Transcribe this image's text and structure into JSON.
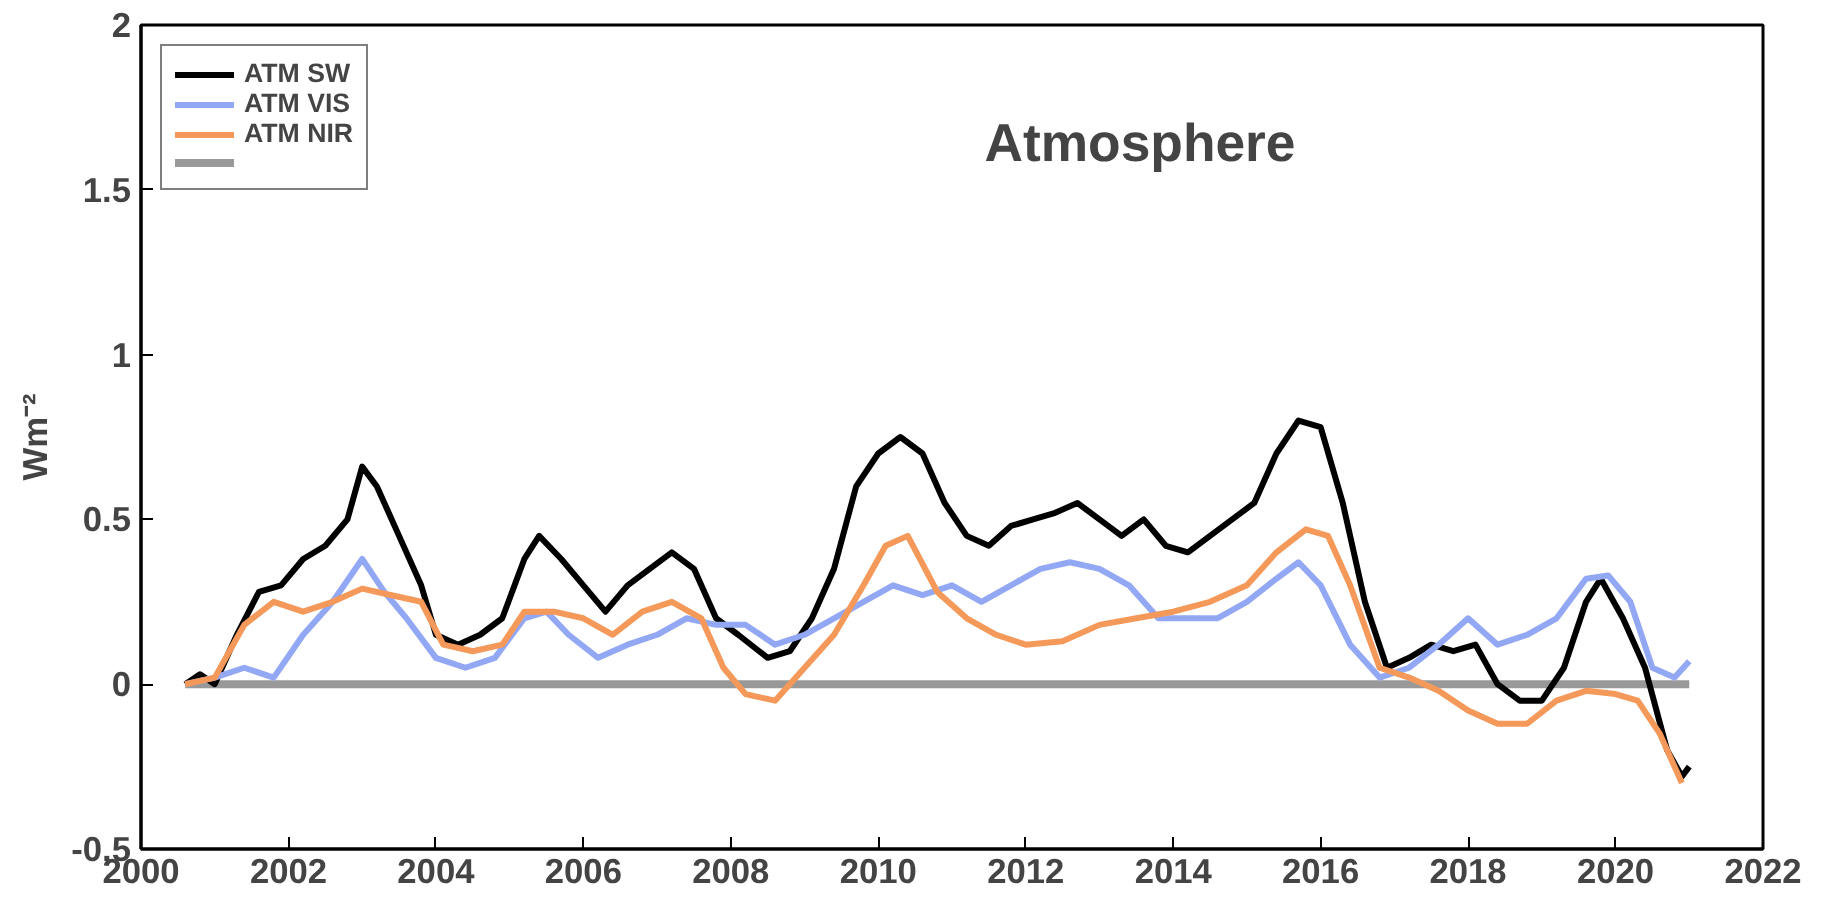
{
  "chart_data": {
    "type": "line",
    "title": "Atmosphere",
    "ylabel": "Wm⁻²",
    "xlim": [
      2000,
      2022
    ],
    "ylim": [
      -0.5,
      2
    ],
    "xticks": [
      2000,
      2002,
      2004,
      2006,
      2008,
      2010,
      2012,
      2014,
      2016,
      2018,
      2020,
      2022
    ],
    "yticks": [
      -0.5,
      0,
      0.5,
      1,
      1.5,
      2
    ],
    "grid": false,
    "legend": "top left",
    "line_style": "solid",
    "marker": "none",
    "series": [
      {
        "name": "ATM SW",
        "color": "#000000",
        "x": [
          2000.6,
          2000.8,
          2001.0,
          2001.3,
          2001.6,
          2001.9,
          2002.2,
          2002.5,
          2002.8,
          2003.0,
          2003.2,
          2003.5,
          2003.8,
          2004.0,
          2004.3,
          2004.6,
          2004.9,
          2005.2,
          2005.4,
          2005.7,
          2006.0,
          2006.3,
          2006.6,
          2006.9,
          2007.2,
          2007.5,
          2007.8,
          2008.1,
          2008.5,
          2008.8,
          2009.1,
          2009.4,
          2009.7,
          2010.0,
          2010.3,
          2010.6,
          2010.9,
          2011.2,
          2011.5,
          2011.8,
          2012.1,
          2012.4,
          2012.7,
          2013.0,
          2013.3,
          2013.6,
          2013.9,
          2014.2,
          2014.5,
          2014.8,
          2015.1,
          2015.4,
          2015.7,
          2016.0,
          2016.3,
          2016.6,
          2016.9,
          2017.2,
          2017.5,
          2017.8,
          2018.1,
          2018.4,
          2018.7,
          2019.0,
          2019.3,
          2019.6,
          2019.8,
          2020.1,
          2020.4,
          2020.7,
          2020.9,
          2021.0
        ],
        "values": [
          0,
          0.03,
          0.0,
          0.15,
          0.28,
          0.3,
          0.38,
          0.42,
          0.5,
          0.66,
          0.6,
          0.45,
          0.3,
          0.15,
          0.12,
          0.15,
          0.2,
          0.38,
          0.45,
          0.38,
          0.3,
          0.22,
          0.3,
          0.35,
          0.4,
          0.35,
          0.2,
          0.15,
          0.08,
          0.1,
          0.2,
          0.35,
          0.6,
          0.7,
          0.75,
          0.7,
          0.55,
          0.45,
          0.42,
          0.48,
          0.5,
          0.52,
          0.55,
          0.5,
          0.45,
          0.5,
          0.42,
          0.4,
          0.45,
          0.5,
          0.55,
          0.7,
          0.8,
          0.78,
          0.55,
          0.25,
          0.05,
          0.08,
          0.12,
          0.1,
          0.12,
          0.0,
          -0.05,
          -0.05,
          0.05,
          0.25,
          0.32,
          0.2,
          0.05,
          -0.2,
          -0.28,
          -0.25
        ]
      },
      {
        "name": "ATM VIS",
        "color": "#93a8f4",
        "x": [
          2000.6,
          2001.0,
          2001.4,
          2001.8,
          2002.2,
          2002.6,
          2003.0,
          2003.3,
          2003.6,
          2004.0,
          2004.4,
          2004.8,
          2005.2,
          2005.5,
          2005.8,
          2006.2,
          2006.6,
          2007.0,
          2007.4,
          2007.8,
          2008.2,
          2008.6,
          2009.0,
          2009.4,
          2009.8,
          2010.2,
          2010.6,
          2011.0,
          2011.4,
          2011.8,
          2012.2,
          2012.6,
          2013.0,
          2013.4,
          2013.8,
          2014.2,
          2014.6,
          2015.0,
          2015.4,
          2015.7,
          2016.0,
          2016.4,
          2016.8,
          2017.2,
          2017.6,
          2018.0,
          2018.4,
          2018.8,
          2019.2,
          2019.6,
          2019.9,
          2020.2,
          2020.5,
          2020.8,
          2021.0
        ],
        "values": [
          0,
          0.02,
          0.05,
          0.02,
          0.15,
          0.25,
          0.38,
          0.28,
          0.2,
          0.08,
          0.05,
          0.08,
          0.2,
          0.22,
          0.15,
          0.08,
          0.12,
          0.15,
          0.2,
          0.18,
          0.18,
          0.12,
          0.15,
          0.2,
          0.25,
          0.3,
          0.27,
          0.3,
          0.25,
          0.3,
          0.35,
          0.37,
          0.35,
          0.3,
          0.2,
          0.2,
          0.2,
          0.25,
          0.32,
          0.37,
          0.3,
          0.12,
          0.02,
          0.05,
          0.12,
          0.2,
          0.12,
          0.15,
          0.2,
          0.32,
          0.33,
          0.25,
          0.05,
          0.02,
          0.07
        ]
      },
      {
        "name": "ATM NIR",
        "color": "#f4995a",
        "x": [
          2000.6,
          2001.0,
          2001.4,
          2001.8,
          2002.2,
          2002.6,
          2003.0,
          2003.4,
          2003.8,
          2004.1,
          2004.5,
          2004.9,
          2005.2,
          2005.6,
          2006.0,
          2006.4,
          2006.8,
          2007.2,
          2007.6,
          2007.9,
          2008.2,
          2008.6,
          2009.0,
          2009.4,
          2009.8,
          2010.1,
          2010.4,
          2010.8,
          2011.2,
          2011.6,
          2012.0,
          2012.5,
          2013.0,
          2013.5,
          2014.0,
          2014.5,
          2015.0,
          2015.4,
          2015.8,
          2016.1,
          2016.4,
          2016.8,
          2017.2,
          2017.6,
          2018.0,
          2018.4,
          2018.8,
          2019.2,
          2019.6,
          2020.0,
          2020.3,
          2020.6,
          2020.9
        ],
        "values": [
          0,
          0.02,
          0.18,
          0.25,
          0.22,
          0.25,
          0.29,
          0.27,
          0.25,
          0.12,
          0.1,
          0.12,
          0.22,
          0.22,
          0.2,
          0.15,
          0.22,
          0.25,
          0.2,
          0.05,
          -0.03,
          -0.05,
          0.05,
          0.15,
          0.3,
          0.42,
          0.45,
          0.28,
          0.2,
          0.15,
          0.12,
          0.13,
          0.18,
          0.2,
          0.22,
          0.25,
          0.3,
          0.4,
          0.47,
          0.45,
          0.3,
          0.05,
          0.02,
          -0.02,
          -0.08,
          -0.12,
          -0.12,
          -0.05,
          -0.02,
          -0.03,
          -0.05,
          -0.15,
          -0.3
        ]
      },
      {
        "color": "#999999",
        "x": [
          2000.6,
          2021.0
        ],
        "values": [
          0,
          0
        ]
      }
    ]
  }
}
